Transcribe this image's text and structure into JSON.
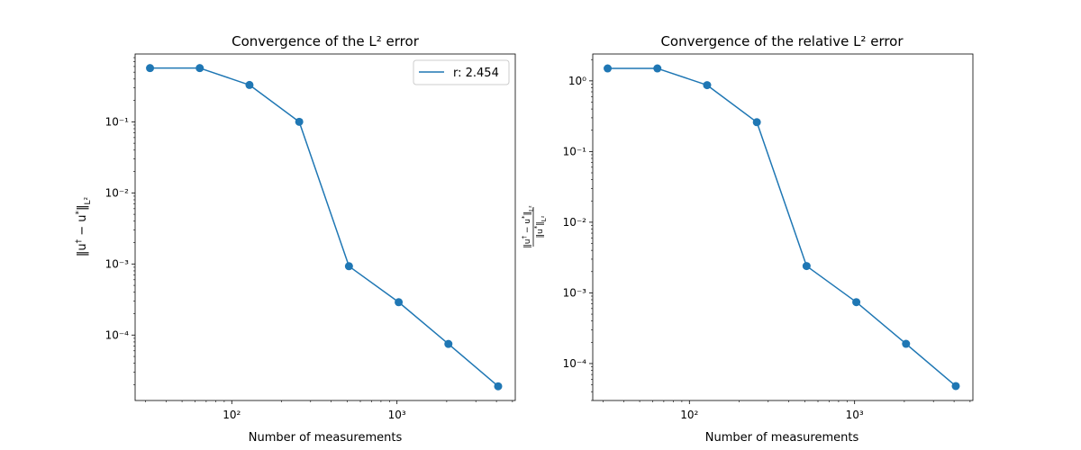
{
  "chart_data": [
    {
      "type": "line",
      "title": "Convergence of the L² error",
      "xlabel": "Number of measurements",
      "ylabel": "||u† − u*||_{L²}",
      "xscale": "log",
      "yscale": "log",
      "xlim": [
        26,
        5200
      ],
      "ylim": [
        1.2e-05,
        0.9
      ],
      "xticks": [
        {
          "value": 100,
          "label": "10²"
        },
        {
          "value": 1000,
          "label": "10³"
        }
      ],
      "yticks": [
        {
          "value": 0.0001,
          "label": "10⁻⁴"
        },
        {
          "value": 0.001,
          "label": "10⁻³"
        },
        {
          "value": 0.01,
          "label": "10⁻²"
        },
        {
          "value": 0.1,
          "label": "10⁻¹"
        }
      ],
      "legend": {
        "position": "top-right",
        "entries": [
          "r: 2.454"
        ]
      },
      "color": "#1f77b4",
      "series": [
        {
          "name": "r: 2.454",
          "x": [
            32,
            64,
            128,
            256,
            512,
            1024,
            2048,
            4096
          ],
          "y": [
            0.57,
            0.57,
            0.33,
            0.1,
            0.00093,
            0.00029,
            7.5e-05,
            1.9e-05
          ]
        }
      ]
    },
    {
      "type": "line",
      "title": "Convergence of the relative L² error",
      "xlabel": "Number of measurements",
      "ylabel": "||u† − u*||_{L²} / ||u*||_{L²}",
      "xscale": "log",
      "yscale": "log",
      "xlim": [
        26,
        5200
      ],
      "ylim": [
        3e-05,
        2.4
      ],
      "xticks": [
        {
          "value": 100,
          "label": "10²"
        },
        {
          "value": 1000,
          "label": "10³"
        }
      ],
      "yticks": [
        {
          "value": 0.0001,
          "label": "10⁻⁴"
        },
        {
          "value": 0.001,
          "label": "10⁻³"
        },
        {
          "value": 0.01,
          "label": "10⁻²"
        },
        {
          "value": 0.1,
          "label": "10⁻¹"
        },
        {
          "value": 1,
          "label": "10⁰"
        }
      ],
      "color": "#1f77b4",
      "series": [
        {
          "x": [
            32,
            64,
            128,
            256,
            512,
            1024,
            2048,
            4096
          ],
          "y": [
            1.5,
            1.5,
            0.87,
            0.26,
            0.0024,
            0.00074,
            0.00019,
            4.8e-05
          ]
        }
      ]
    }
  ]
}
